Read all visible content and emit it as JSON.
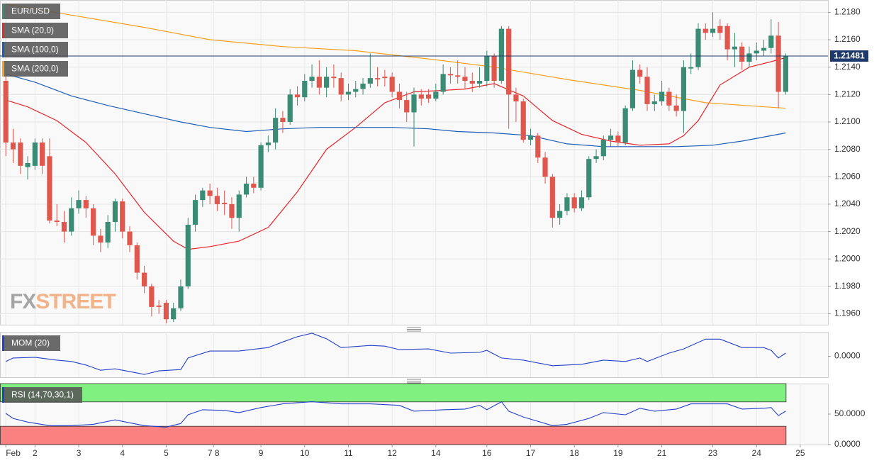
{
  "chart_data": [
    {
      "type": "candlestick",
      "symbol": "EUR/USD",
      "logo": [
        "FX",
        "STREET"
      ],
      "up_color": "#3b8c74",
      "down_color": "#e0574e",
      "open": [
        1.213,
        1.2085,
        1.2085,
        1.2067,
        1.2068,
        1.2085,
        1.2075,
        1.2028,
        1.2027,
        1.202,
        1.2037,
        1.2043,
        1.2037,
        1.2017,
        1.2012,
        1.2027,
        1.2042,
        1.202,
        1.201,
        1.199,
        1.198,
        1.1966,
        1.1968,
        1.1956,
        1.1964,
        1.198,
        1.2025,
        1.2043,
        1.205,
        1.2046,
        1.2041,
        1.204,
        1.203,
        1.2047,
        1.2055,
        1.2052,
        1.2083,
        1.2085,
        1.2103,
        1.21,
        1.212,
        1.2118,
        1.213,
        1.2133,
        1.2125,
        1.2133,
        1.2132,
        1.212,
        1.2122,
        1.2124,
        1.2128,
        1.2132,
        1.2133,
        1.2133,
        1.2122,
        1.2116,
        1.2107,
        1.212,
        1.212,
        1.2117,
        1.2122,
        1.2135,
        1.2134,
        1.2133,
        1.213,
        1.2128,
        1.213,
        1.2148,
        1.213,
        1.2168,
        1.212,
        1.2115,
        1.2087,
        1.209,
        1.2074,
        1.206,
        1.203,
        1.2035,
        1.2045,
        1.2037,
        1.2045,
        1.2073,
        1.2075,
        1.2087,
        1.209,
        1.2085,
        1.211,
        1.2138,
        1.2133,
        1.2113,
        1.2115,
        1.2122,
        1.2112,
        1.2108,
        1.2139,
        1.214,
        1.2168,
        1.2165,
        1.217,
        1.217,
        1.2153,
        1.2155,
        1.2144,
        1.215,
        1.2152,
        1.2154,
        1.2163,
        1.2122
      ],
      "high": [
        1.2133,
        1.2095,
        1.2088,
        1.2075,
        1.2088,
        1.2088,
        1.2088,
        1.204,
        1.2035,
        1.2045,
        1.205,
        1.2046,
        1.204,
        1.2022,
        1.2032,
        1.2044,
        1.2044,
        1.2024,
        1.2012,
        1.1995,
        1.1982,
        1.197,
        1.197,
        1.1968,
        1.1985,
        1.203,
        1.2047,
        1.2052,
        1.2055,
        1.2052,
        1.205,
        1.2045,
        1.205,
        1.206,
        1.206,
        1.2085,
        1.209,
        1.211,
        1.2108,
        1.2124,
        1.2126,
        1.2135,
        1.2142,
        1.2145,
        1.214,
        1.2142,
        1.2136,
        1.2128,
        1.213,
        1.2132,
        1.215,
        1.214,
        1.2138,
        1.2136,
        1.2128,
        1.2122,
        1.2125,
        1.2124,
        1.2124,
        1.2128,
        1.2142,
        1.214,
        1.2145,
        1.214,
        1.2136,
        1.214,
        1.2152,
        1.215,
        1.217,
        1.217,
        1.2125,
        1.2117,
        1.2095,
        1.2092,
        1.2078,
        1.2062,
        1.204,
        1.2048,
        1.2048,
        1.205,
        1.2075,
        1.208,
        1.209,
        1.2095,
        1.2093,
        1.2112,
        1.2145,
        1.2142,
        1.214,
        1.212,
        1.213,
        1.2125,
        1.212,
        1.2145,
        1.215,
        1.2172,
        1.2172,
        1.218,
        1.2175,
        1.2172,
        1.2165,
        1.2158,
        1.2155,
        1.2158,
        1.216,
        1.2175,
        1.2173,
        1.215
      ],
      "low": [
        1.2075,
        1.207,
        1.2062,
        1.2058,
        1.2065,
        1.2062,
        1.2026,
        1.2024,
        1.2012,
        1.2017,
        1.2033,
        1.203,
        1.201,
        1.2005,
        1.2008,
        1.202,
        1.2015,
        1.2005,
        1.1985,
        1.1975,
        1.1958,
        1.196,
        1.1953,
        1.1954,
        1.1962,
        1.1978,
        1.202,
        1.2038,
        1.204,
        1.2035,
        1.2032,
        1.2022,
        1.202,
        1.2045,
        1.2048,
        1.205,
        1.2078,
        1.208,
        1.2092,
        1.2098,
        1.2112,
        1.2115,
        1.2125,
        1.212,
        1.2118,
        1.2125,
        1.2115,
        1.2116,
        1.2118,
        1.212,
        1.2125,
        1.2126,
        1.2126,
        1.2118,
        1.211,
        1.21,
        1.2082,
        1.2112,
        1.2114,
        1.2115,
        1.212,
        1.2128,
        1.2128,
        1.2124,
        1.2122,
        1.2125,
        1.2126,
        1.2125,
        1.2128,
        1.2095,
        1.21,
        1.2085,
        1.2083,
        1.207,
        1.2055,
        1.2023,
        1.2025,
        1.2032,
        1.2034,
        1.2035,
        1.2043,
        1.207,
        1.2072,
        1.2082,
        1.2082,
        1.2083,
        1.2108,
        1.2128,
        1.2108,
        1.2108,
        1.2112,
        1.2108,
        1.2104,
        1.2092,
        1.2135,
        1.2138,
        1.216,
        1.2162,
        1.216,
        1.2145,
        1.214,
        1.2138,
        1.214,
        1.2145,
        1.2148,
        1.215,
        1.211,
        1.212
      ],
      "close": [
        1.2085,
        1.208,
        1.2068,
        1.207,
        1.2085,
        1.2068,
        1.2028,
        1.2027,
        1.202,
        1.2037,
        1.2043,
        1.2037,
        1.2017,
        1.2012,
        1.2027,
        1.2042,
        1.202,
        1.201,
        1.199,
        1.198,
        1.1965,
        1.1965,
        1.1956,
        1.1964,
        1.198,
        1.2025,
        1.2043,
        1.205,
        1.2046,
        1.204,
        1.204,
        1.203,
        1.2047,
        1.2055,
        1.2052,
        1.2083,
        1.2085,
        1.2103,
        1.21,
        1.212,
        1.2118,
        1.213,
        1.2133,
        1.2125,
        1.2133,
        1.2132,
        1.212,
        1.2122,
        1.2124,
        1.2128,
        1.2132,
        1.2131,
        1.2132,
        1.2122,
        1.2116,
        1.2107,
        1.212,
        1.2117,
        1.2117,
        1.2122,
        1.2135,
        1.2134,
        1.2133,
        1.213,
        1.2128,
        1.213,
        1.2148,
        1.213,
        1.2168,
        1.212,
        1.2115,
        1.2087,
        1.209,
        1.2074,
        1.206,
        1.203,
        1.2035,
        1.2045,
        1.2037,
        1.2045,
        1.2073,
        1.2075,
        1.2087,
        1.209,
        1.2085,
        1.211,
        1.2138,
        1.2133,
        1.2113,
        1.2115,
        1.2122,
        1.2112,
        1.2108,
        1.214,
        1.214,
        1.2168,
        1.2165,
        1.2168,
        1.2165,
        1.2153,
        1.2155,
        1.2144,
        1.215,
        1.2152,
        1.2154,
        1.2163,
        1.2122,
        1.2148
      ],
      "overlays": [
        {
          "name": "SMA (20,0)",
          "color": "#e8262b",
          "x": [
            0,
            3,
            7,
            11,
            15,
            19,
            23,
            25,
            28,
            32,
            36,
            40,
            44,
            48,
            52,
            56,
            60,
            63,
            67,
            71,
            75,
            79,
            83,
            87,
            91,
            93,
            95,
            98,
            102,
            105,
            107
          ],
          "values": [
            1.2116,
            1.2111,
            1.2101,
            1.2085,
            1.2062,
            1.2034,
            1.2013,
            1.2007,
            1.2009,
            1.2013,
            1.2023,
            1.2049,
            1.208,
            1.2096,
            1.2114,
            1.2122,
            1.2123,
            1.2124,
            1.2128,
            1.2119,
            1.2101,
            1.2091,
            1.2086,
            1.2083,
            1.2084,
            1.209,
            1.2101,
            1.2127,
            1.214,
            1.2144,
            1.2147
          ]
        },
        {
          "name": "SMA (100,0)",
          "color": "#1f5db5",
          "x": [
            0,
            4,
            9,
            14,
            19,
            24,
            28,
            33,
            38,
            43,
            48,
            53,
            58,
            62,
            67,
            72,
            77,
            82,
            87,
            92,
            97,
            101,
            107
          ],
          "values": [
            1.2135,
            1.2129,
            1.2119,
            1.2112,
            1.2106,
            1.21,
            1.2096,
            1.2093,
            1.2095,
            1.2096,
            1.2096,
            1.2096,
            1.2095,
            1.2093,
            1.2092,
            1.209,
            1.2084,
            1.2082,
            1.2082,
            1.2082,
            1.2083,
            1.2086,
            1.2092
          ]
        },
        {
          "name": "SMA (200,0)",
          "color": "#f5a020",
          "x": [
            0,
            9,
            19,
            28,
            38,
            48,
            58,
            67,
            77,
            87,
            96,
            107
          ],
          "values": [
            1.2186,
            1.2178,
            1.2169,
            1.216,
            1.2155,
            1.2152,
            1.2146,
            1.214,
            1.2131,
            1.2123,
            1.2114,
            1.211
          ]
        }
      ],
      "last_price": 1.21481,
      "xlim": [
        -0.8,
        112.8
      ],
      "xticks": [
        {
          "value": 0,
          "label": "Feb"
        },
        {
          "value": 4,
          "label": "2"
        },
        {
          "value": 10,
          "label": "3"
        },
        {
          "value": 16,
          "label": "4"
        },
        {
          "value": 22,
          "label": "5"
        },
        {
          "value": 28.5,
          "label": "7 8"
        },
        {
          "value": 35,
          "label": "9"
        },
        {
          "value": 41,
          "label": "10"
        },
        {
          "value": 47,
          "label": "11"
        },
        {
          "value": 53,
          "label": "12"
        },
        {
          "value": 59,
          "label": "14"
        },
        {
          "value": 66,
          "label": "16"
        },
        {
          "value": 72,
          "label": "17"
        },
        {
          "value": 78,
          "label": "18"
        },
        {
          "value": 84,
          "label": "19"
        },
        {
          "value": 90,
          "label": "21"
        },
        {
          "value": 97,
          "label": "23"
        },
        {
          "value": 103,
          "label": "24"
        },
        {
          "value": 109,
          "label": "25"
        }
      ],
      "ylim": [
        1.1952,
        1.2189
      ],
      "yticks": [
        {
          "value": 1.218,
          "label": "1.2180"
        },
        {
          "value": 1.216,
          "label": "1.2160"
        },
        {
          "value": 1.214,
          "label": "1.2140"
        },
        {
          "value": 1.212,
          "label": "1.2120"
        },
        {
          "value": 1.21,
          "label": "1.2100"
        },
        {
          "value": 1.208,
          "label": "1.2080"
        },
        {
          "value": 1.206,
          "label": "1.2060"
        },
        {
          "value": 1.204,
          "label": "1.2040"
        },
        {
          "value": 1.202,
          "label": "1.2020"
        },
        {
          "value": 1.2,
          "label": "1.2000"
        },
        {
          "value": 1.198,
          "label": "1.1980"
        },
        {
          "value": 1.196,
          "label": "1.1960"
        }
      ],
      "grid": true
    },
    {
      "type": "line",
      "series": [
        {
          "name": "MOM (20)",
          "color": "#2540c8",
          "x": [
            0,
            1,
            4,
            7,
            9,
            11,
            13,
            15,
            17,
            19,
            21,
            24,
            25,
            28,
            32,
            36,
            38,
            40,
            42,
            44,
            46,
            50,
            52,
            54,
            58,
            61,
            65,
            66,
            68,
            71,
            75,
            79,
            82,
            85,
            87,
            88,
            91,
            93,
            96,
            98,
            101,
            104,
            105,
            106,
            107
          ],
          "values": [
            -0.0015,
            -0.0005,
            -0.0003,
            -0.0011,
            -0.0015,
            -0.0025,
            -0.004,
            -0.0036,
            -0.0044,
            -0.0052,
            -0.0042,
            -0.0038,
            -0.0005,
            0.0015,
            0.0015,
            0.0025,
            0.0041,
            0.0056,
            0.0066,
            0.005,
            0.0025,
            0.0031,
            0.0029,
            0.0019,
            0.0021,
            0.0009,
            0.0011,
            0.0017,
            -0.0005,
            -0.0011,
            -0.0027,
            -0.0023,
            -0.0011,
            -0.0015,
            -0.0005,
            -0.0015,
            0.0009,
            0.0021,
            0.0049,
            0.0049,
            0.0025,
            0.0025,
            0.0017,
            -0.0005,
            0.0009
          ]
        }
      ],
      "xlim": [
        -0.8,
        112.8
      ],
      "ylim": [
        -0.006,
        0.007
      ],
      "yticks": [
        {
          "value": 0,
          "label": "0.0000"
        }
      ]
    },
    {
      "type": "line",
      "series": [
        {
          "name": "RSI (14,70,30,1)",
          "color": "#2540c8",
          "x": [
            0,
            1,
            3,
            6,
            9,
            12,
            15,
            17,
            19,
            22,
            24,
            25,
            27,
            30,
            32,
            35,
            38,
            42,
            46,
            50,
            54,
            56,
            60,
            63,
            65,
            66,
            68,
            69,
            71,
            75,
            77,
            80,
            82,
            85,
            87,
            89,
            92,
            94,
            96,
            99,
            101,
            104,
            105,
            106,
            107
          ],
          "values": [
            51.2,
            42.9,
            36.9,
            31.0,
            31.0,
            33.3,
            40.5,
            35.7,
            31.0,
            28.6,
            34.5,
            48.8,
            57.1,
            56.0,
            52.4,
            60.7,
            66.7,
            70.2,
            66.7,
            66.7,
            64.3,
            54.8,
            57.1,
            58.3,
            64.3,
            57.1,
            70.2,
            54.8,
            45.2,
            31.0,
            33.3,
            42.9,
            52.4,
            48.8,
            59.5,
            54.8,
            58.3,
            66.7,
            66.7,
            66.7,
            58.3,
            59.5,
            60.7,
            47.6,
            54.8
          ]
        }
      ],
      "bands": [
        {
          "from": 70,
          "to": 100,
          "color": "#80f080"
        },
        {
          "from": 0,
          "to": 30,
          "color": "#fb8080"
        }
      ],
      "xlim": [
        -0.8,
        112.8
      ],
      "ylim": [
        0,
        100
      ],
      "yticks": [
        {
          "value": 50,
          "label": "50.0000"
        },
        {
          "value": 0,
          "label": "0.0000"
        }
      ]
    }
  ]
}
